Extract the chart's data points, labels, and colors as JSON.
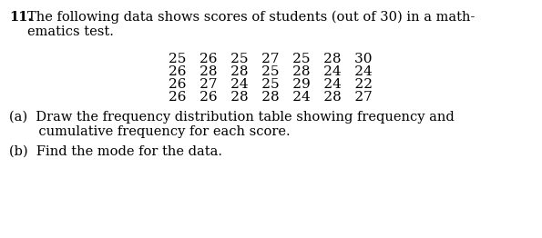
{
  "question_number": "11.",
  "intro_line1": "The following data shows scores of students (out of 30) in a math-",
  "intro_line2": "ematics test.",
  "data_rows": [
    "25   26   25   27   25   28   30",
    "26   28   28   25   28   24   24",
    "26   27   24   25   29   24   22",
    "26   26   28   28   24   28   27"
  ],
  "part_a_line1": "(a)  Draw the frequency distribution table showing frequency and",
  "part_a_line2": "       cumulative frequency for each score.",
  "part_b": "(b)  Find the mode for the data.",
  "bg_color": "#ffffff",
  "text_color": "#000000",
  "font_size_main": 10.5,
  "font_size_data": 11.0
}
